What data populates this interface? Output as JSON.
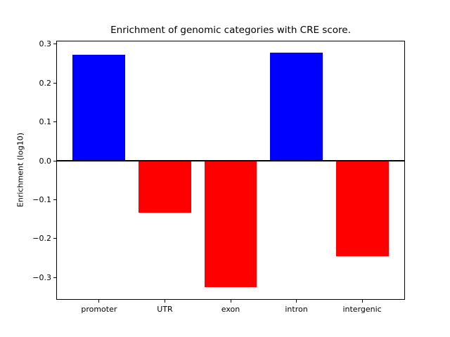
{
  "chart_data": {
    "type": "bar",
    "title": "Enrichment of genomic categories with CRE score.",
    "xlabel": "",
    "ylabel": "Enrichment (log10)",
    "categories": [
      "promoter",
      "UTR",
      "exon",
      "intron",
      "intergenic"
    ],
    "values": [
      0.273,
      -0.134,
      -0.325,
      0.278,
      -0.245
    ],
    "bar_colors": [
      "#0000ff",
      "#ff0000",
      "#ff0000",
      "#0000ff",
      "#ff0000"
    ],
    "positive_color": "#0000ff",
    "negative_color": "#ff0000",
    "bar_width_data_units": 0.8,
    "xlim": [
      -0.64,
      4.64
    ],
    "ylim": [
      -0.3554,
      0.3073
    ],
    "yticks": [
      0.3,
      0.2,
      0.1,
      0.0,
      -0.1,
      -0.2,
      -0.3
    ],
    "ytick_labels": [
      "0.3",
      "0.2",
      "0.1",
      "0.0",
      "−0.1",
      "−0.2",
      "−0.3"
    ],
    "grid": false,
    "legend": null,
    "zero_line": true
  }
}
